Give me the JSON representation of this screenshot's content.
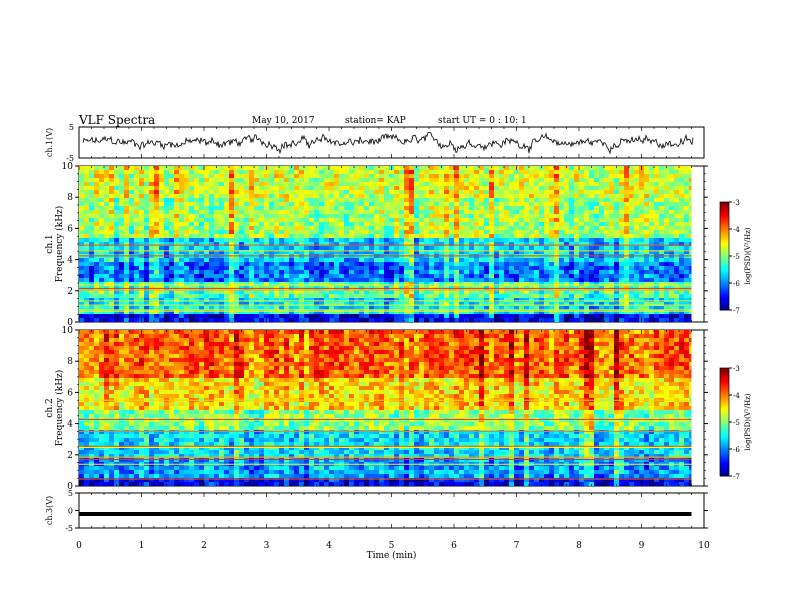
{
  "header": {
    "title": "VLF Spectra",
    "date": "May 10, 2017",
    "station": "station= KAP",
    "start": "start  UT =   0 : 10: 1"
  },
  "chart_data": [
    {
      "type": "line",
      "name_label": "ch.1(V)",
      "ylim": [
        -5,
        5
      ],
      "ytick_labels": [
        "-5",
        "5"
      ],
      "xlim": [
        0,
        10
      ],
      "series": [
        {
          "description": "noisy waveform around 0 V"
        }
      ]
    },
    {
      "type": "heatmap",
      "ylabel_top": "ch.1",
      "ylabel": "Frequency (kHz)",
      "ylim": [
        0,
        10
      ],
      "ytick_labels": [
        "0",
        "2",
        "4",
        "6",
        "8",
        "10"
      ],
      "xlim": [
        0,
        9.8
      ],
      "colorbar": {
        "label": "log(PSD)(V²/Hz)",
        "range": [
          -7,
          -3
        ],
        "ticks": [
          "-3",
          "-4",
          "-5",
          "-6",
          "-7"
        ]
      },
      "bands": [
        {
          "f": [
            0,
            0.5
          ],
          "level": -6.6
        },
        {
          "f": [
            0.5,
            1.5
          ],
          "level": -5.6
        },
        {
          "f": [
            1.5,
            2.6
          ],
          "level": -5.2
        },
        {
          "f": [
            2.6,
            3.8
          ],
          "level": -6.1
        },
        {
          "f": [
            3.8,
            5.5
          ],
          "level": -5.7
        },
        {
          "f": [
            5.5,
            8.0
          ],
          "level": -4.9
        },
        {
          "f": [
            8.0,
            10.0
          ],
          "level": -4.7
        }
      ]
    },
    {
      "type": "heatmap",
      "ylabel_top": "ch.2",
      "ylabel": "Frequency (kHz)",
      "ylim": [
        0,
        10
      ],
      "ytick_labels": [
        "0",
        "2",
        "4",
        "6",
        "8",
        "10"
      ],
      "xlim": [
        0,
        9.8
      ],
      "colorbar": {
        "label": "log(PSD)(V²/Hz)",
        "range": [
          -7,
          -3
        ],
        "ticks": [
          "-3",
          "-4",
          "-5",
          "-6",
          "-7"
        ]
      },
      "bands": [
        {
          "f": [
            0,
            0.4
          ],
          "level": -6.6
        },
        {
          "f": [
            0.4,
            1.8
          ],
          "level": -5.9
        },
        {
          "f": [
            1.8,
            3.5
          ],
          "level": -5.6
        },
        {
          "f": [
            3.5,
            5.0
          ],
          "level": -5.0
        },
        {
          "f": [
            5.0,
            7.0
          ],
          "level": -4.4
        },
        {
          "f": [
            7.0,
            10.0
          ],
          "level": -3.9
        }
      ]
    },
    {
      "type": "line",
      "name_label": "ch.3(V)",
      "ylim": [
        -5,
        5
      ],
      "ytick_labels": [
        "5",
        "0",
        "-5"
      ],
      "xlim": [
        0,
        10
      ],
      "series": [
        {
          "description": "flat line near -1 V",
          "values_constant": -1
        }
      ]
    }
  ],
  "xaxis": {
    "label": "Time (min)",
    "ticks": [
      "0",
      "1",
      "2",
      "3",
      "4",
      "5",
      "6",
      "7",
      "8",
      "9",
      "10"
    ],
    "range": [
      0,
      10
    ]
  }
}
